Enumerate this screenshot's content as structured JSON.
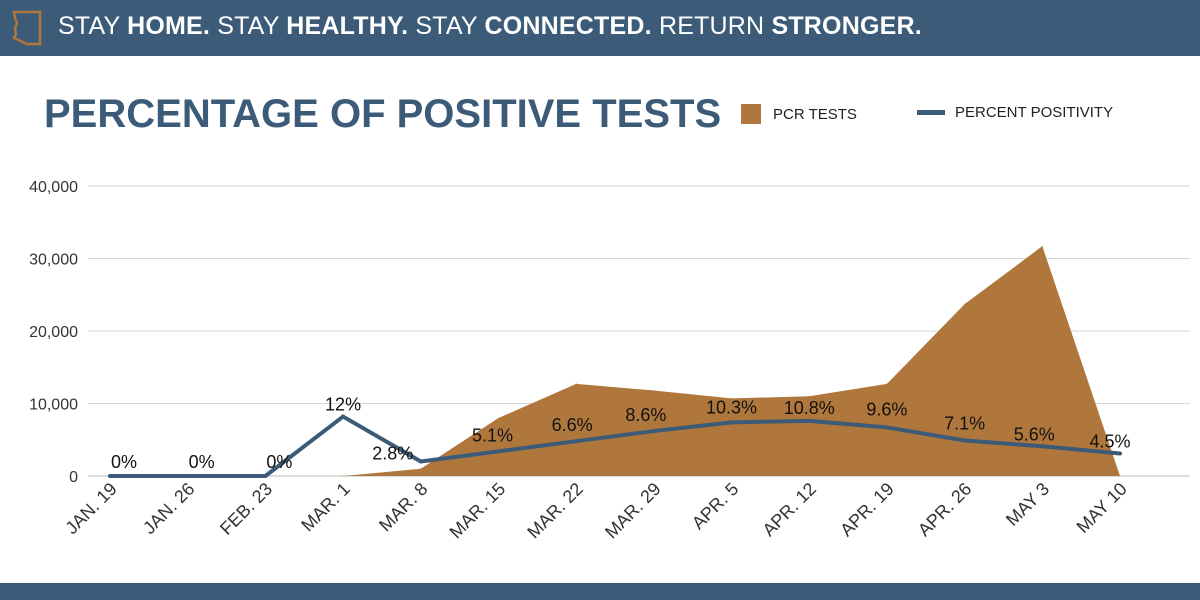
{
  "banner": {
    "parts": [
      {
        "text": "STAY ",
        "weight": "light"
      },
      {
        "text": "HOME.",
        "weight": "bold"
      },
      {
        "text": " STAY ",
        "weight": "light"
      },
      {
        "text": "HEALTHY.",
        "weight": "bold"
      },
      {
        "text": " STAY ",
        "weight": "light"
      },
      {
        "text": "CONNECTED.",
        "weight": "bold"
      },
      {
        "text": " RETURN ",
        "weight": "light"
      },
      {
        "text": "STRONGER.",
        "weight": "bold"
      }
    ],
    "icon": "arizona-state-outline-icon"
  },
  "colors": {
    "brand": "#3b5b78",
    "area": "#b0773c",
    "grid": "#d6d6d6"
  },
  "chart_data": {
    "type": "area",
    "title": "PERCENTAGE OF POSITIVE TESTS",
    "legend": [
      "PCR TESTS",
      "PERCENT POSITIVITY"
    ],
    "categories": [
      "JAN. 19",
      "JAN. 26",
      "FEB. 23",
      "MAR. 1",
      "MAR. 8",
      "MAR. 15",
      "MAR. 22",
      "MAR. 29",
      "APR. 5",
      "APR. 12",
      "APR. 19",
      "APR. 26",
      "MAY 3",
      "MAY 10"
    ],
    "y_ticks": [
      "0",
      "10,000",
      "20,000",
      "30,000",
      "40,000"
    ],
    "ylim": [
      0,
      40000
    ],
    "series": [
      {
        "name": "PCR TESTS",
        "type": "area",
        "values": [
          0,
          0,
          0,
          0,
          1000,
          8000,
          12700,
          11800,
          10700,
          11000,
          12700,
          23700,
          31700,
          0
        ]
      },
      {
        "name": "PERCENT POSITIVITY",
        "type": "line",
        "values_plotted": [
          0,
          0,
          0,
          8200,
          2000,
          3400,
          4800,
          6200,
          7400,
          7600,
          6700,
          4900,
          4100,
          3100
        ],
        "labels": [
          "0%",
          "0%",
          "0%",
          "12%",
          "2.8%",
          "5.1%",
          "6.6%",
          "8.6%",
          "10.3%",
          "10.8%",
          "9.6%",
          "7.1%",
          "5.6%",
          "4.5%"
        ]
      }
    ]
  }
}
